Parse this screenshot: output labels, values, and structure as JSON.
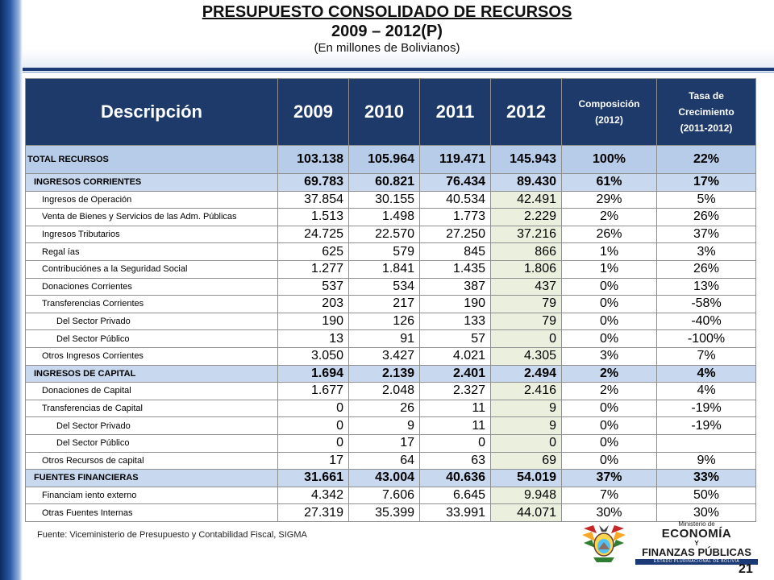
{
  "title": {
    "line1": "PRESUPUESTO CONSOLIDADO DE RECURSOS",
    "line2": "2009 – 2012(P)",
    "line3": "(En millones de Bolivianos)"
  },
  "table": {
    "headers": {
      "desc": "Descripción",
      "y2009": "2009",
      "y2010": "2010",
      "y2011": "2011",
      "y2012": "2012",
      "comp_line1": "Composición",
      "comp_line2": "(2012)",
      "tasa_line1": "Tasa de",
      "tasa_line2": "Crecimiento",
      "tasa_line3": "(2011-2012)"
    },
    "rows": [
      {
        "type": "total",
        "desc": "TOTAL RECURSOS",
        "y2009": "103.138",
        "y2010": "105.964",
        "y2011": "119.471",
        "y2012": "145.943",
        "comp": "100%",
        "tasa": "22%"
      },
      {
        "type": "sect",
        "desc": "INGRESOS CORRIENTES",
        "y2009": "69.783",
        "y2010": "60.821",
        "y2011": "76.434",
        "y2012": "89.430",
        "comp": "61%",
        "tasa": "17%"
      },
      {
        "type": "l1",
        "desc": "Ingresos de Operación",
        "y2009": "37.854",
        "y2010": "30.155",
        "y2011": "40.534",
        "y2012": "42.491",
        "comp": "29%",
        "tasa": "5%"
      },
      {
        "type": "l1",
        "desc": "Venta de Bienes y Servicios de las Adm. Públicas",
        "y2009": "1.513",
        "y2010": "1.498",
        "y2011": "1.773",
        "y2012": "2.229",
        "comp": "2%",
        "tasa": "26%"
      },
      {
        "type": "l1",
        "desc": "Ingresos Tributarios",
        "y2009": "24.725",
        "y2010": "22.570",
        "y2011": "27.250",
        "y2012": "37.216",
        "comp": "26%",
        "tasa": "37%"
      },
      {
        "type": "l1",
        "desc": "Regal ías",
        "y2009": "625",
        "y2010": "579",
        "y2011": "845",
        "y2012": "866",
        "comp": "1%",
        "tasa": "3%"
      },
      {
        "type": "l1",
        "desc": "Contribuciónes a la Seguridad Social",
        "y2009": "1.277",
        "y2010": "1.841",
        "y2011": "1.435",
        "y2012": "1.806",
        "comp": "1%",
        "tasa": "26%"
      },
      {
        "type": "l1",
        "desc": "Donaciones Corrientes",
        "y2009": "537",
        "y2010": "534",
        "y2011": "387",
        "y2012": "437",
        "comp": "0%",
        "tasa": "13%"
      },
      {
        "type": "l1",
        "desc": "Transferencias Corrientes",
        "y2009": "203",
        "y2010": "217",
        "y2011": "190",
        "y2012": "79",
        "comp": "0%",
        "tasa": "-58%"
      },
      {
        "type": "l2",
        "desc": "Del Sector Privado",
        "y2009": "190",
        "y2010": "126",
        "y2011": "133",
        "y2012": "79",
        "comp": "0%",
        "tasa": "-40%"
      },
      {
        "type": "l2",
        "desc": "Del Sector Público",
        "y2009": "13",
        "y2010": "91",
        "y2011": "57",
        "y2012": "0",
        "comp": "0%",
        "tasa": "-100%"
      },
      {
        "type": "l1",
        "desc": "Otros Ingresos Corrientes",
        "y2009": "3.050",
        "y2010": "3.427",
        "y2011": "4.021",
        "y2012": "4.305",
        "comp": "3%",
        "tasa": "7%"
      },
      {
        "type": "sect",
        "desc": "INGRESOS DE CAPITAL",
        "y2009": "1.694",
        "y2010": "2.139",
        "y2011": "2.401",
        "y2012": "2.494",
        "comp": "2%",
        "tasa": "4%"
      },
      {
        "type": "l1",
        "desc": "Donaciones de Capital",
        "y2009": "1.677",
        "y2010": "2.048",
        "y2011": "2.327",
        "y2012": "2.416",
        "comp": "2%",
        "tasa": "4%"
      },
      {
        "type": "l1",
        "desc": "Transferencias de Capital",
        "y2009": "0",
        "y2010": "26",
        "y2011": "11",
        "y2012": "9",
        "comp": "0%",
        "tasa": "-19%"
      },
      {
        "type": "l2",
        "desc": "Del Sector Privado",
        "y2009": "0",
        "y2010": "9",
        "y2011": "11",
        "y2012": "9",
        "comp": "0%",
        "tasa": "-19%"
      },
      {
        "type": "l2",
        "desc": "Del Sector Público",
        "y2009": "0",
        "y2010": "17",
        "y2011": "0",
        "y2012": "0",
        "comp": "0%",
        "tasa": ""
      },
      {
        "type": "l1",
        "desc": "Otros Recursos de capital",
        "y2009": "17",
        "y2010": "64",
        "y2011": "63",
        "y2012": "69",
        "comp": "0%",
        "tasa": "9%"
      },
      {
        "type": "sect",
        "desc": "FUENTES FINANCIERAS",
        "y2009": "31.661",
        "y2010": "43.004",
        "y2011": "40.636",
        "y2012": "54.019",
        "comp": "37%",
        "tasa": "33%"
      },
      {
        "type": "l1",
        "desc": "Financiam iento externo",
        "y2009": "4.342",
        "y2010": "7.606",
        "y2011": "6.645",
        "y2012": "9.948",
        "comp": "7%",
        "tasa": "50%"
      },
      {
        "type": "l1",
        "desc": "Otras Fuentes Internas",
        "y2009": "27.319",
        "y2010": "35.399",
        "y2011": "33.991",
        "y2012": "44.071",
        "comp": "30%",
        "tasa": "30%"
      }
    ]
  },
  "footer": {
    "source": "Fuente: Viceministerio de Presupuesto y Contabilidad Fiscal, SIGMA",
    "page_number": "21"
  },
  "logo": {
    "line1": "Ministerio de",
    "line2": "ECONOMÍA",
    "line3": "Y",
    "line4": "FINANZAS PÚBLICAS",
    "line5": "ESTADO PLURINACIONAL DE BOLIVIA",
    "emblem_icon": "bolivia-coat-of-arms-icon"
  },
  "colors": {
    "header_bg": "#1d3a6b",
    "total_row_bg": "#b7cce8",
    "section_row_bg": "#c8d8ee",
    "col2012_bg": "#ebf0de"
  }
}
